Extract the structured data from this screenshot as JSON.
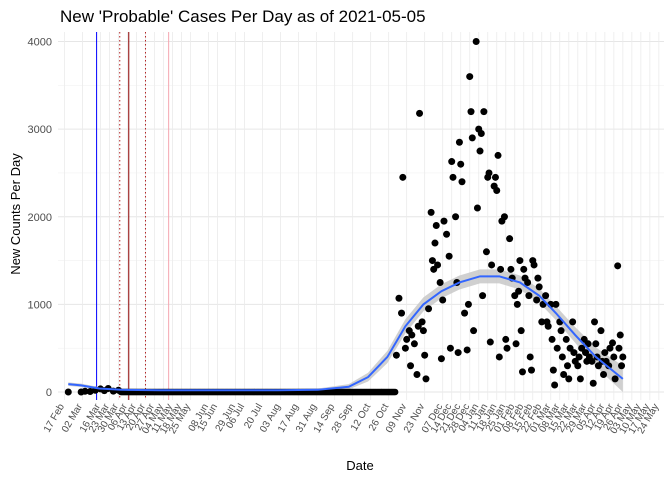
{
  "chart_data": {
    "type": "scatter",
    "title": "New 'Probable' Cases Per Day as of 2021-05-05",
    "xlabel": "Date",
    "ylabel": "New Counts Per Day",
    "ylim": [
      0,
      4200
    ],
    "xlim": [
      "2020-02-12",
      "2021-05-28"
    ],
    "grid": true,
    "y_ticks": [
      0,
      1000,
      2000,
      3000,
      4000
    ],
    "x_ticks": [
      {
        "date": "2020-02-17",
        "label": "17 Feb"
      },
      {
        "date": "2020-03-02",
        "label": "02 Mar"
      },
      {
        "date": "2020-03-16",
        "label": "16 Mar"
      },
      {
        "date": "2020-03-23",
        "label": "23 Mar"
      },
      {
        "date": "2020-03-30",
        "label": "30 Mar"
      },
      {
        "date": "2020-04-06",
        "label": "06 Apr"
      },
      {
        "date": "2020-04-13",
        "label": "13 Apr"
      },
      {
        "date": "2020-04-20",
        "label": "20 Apr"
      },
      {
        "date": "2020-04-27",
        "label": "27 Apr"
      },
      {
        "date": "2020-05-04",
        "label": "04 May"
      },
      {
        "date": "2020-05-11",
        "label": "11 May"
      },
      {
        "date": "2020-05-18",
        "label": "18 May"
      },
      {
        "date": "2020-05-25",
        "label": "25 May"
      },
      {
        "date": "2020-06-08",
        "label": "08 Jun"
      },
      {
        "date": "2020-06-15",
        "label": "15 Jun"
      },
      {
        "date": "2020-06-29",
        "label": "29 Jun"
      },
      {
        "date": "2020-07-06",
        "label": "06 Jul"
      },
      {
        "date": "2020-07-20",
        "label": "20 Jul"
      },
      {
        "date": "2020-08-03",
        "label": "03 Aug"
      },
      {
        "date": "2020-08-17",
        "label": "17 Aug"
      },
      {
        "date": "2020-08-31",
        "label": "31 Aug"
      },
      {
        "date": "2020-09-14",
        "label": "14 Sep"
      },
      {
        "date": "2020-09-28",
        "label": "28 Sep"
      },
      {
        "date": "2020-10-12",
        "label": "12 Oct"
      },
      {
        "date": "2020-10-26",
        "label": "26 Oct"
      },
      {
        "date": "2020-11-09",
        "label": "09 Nov"
      },
      {
        "date": "2020-11-23",
        "label": "23 Nov"
      },
      {
        "date": "2020-12-07",
        "label": "07 Dec"
      },
      {
        "date": "2020-12-14",
        "label": "14 Dec"
      },
      {
        "date": "2020-12-21",
        "label": "21 Dec"
      },
      {
        "date": "2020-12-28",
        "label": "28 Dec"
      },
      {
        "date": "2021-01-04",
        "label": "04 Jan"
      },
      {
        "date": "2021-01-11",
        "label": "11 Jan"
      },
      {
        "date": "2021-01-18",
        "label": "18 Jan"
      },
      {
        "date": "2021-01-25",
        "label": "25 Jan"
      },
      {
        "date": "2021-02-01",
        "label": "01 Feb"
      },
      {
        "date": "2021-02-08",
        "label": "08 Feb"
      },
      {
        "date": "2021-02-15",
        "label": "15 Feb"
      },
      {
        "date": "2021-02-22",
        "label": "22 Feb"
      },
      {
        "date": "2021-03-01",
        "label": "01 Mar"
      },
      {
        "date": "2021-03-08",
        "label": "08 Mar"
      },
      {
        "date": "2021-03-15",
        "label": "15 Mar"
      },
      {
        "date": "2021-03-22",
        "label": "22 Mar"
      },
      {
        "date": "2021-03-29",
        "label": "29 Mar"
      },
      {
        "date": "2021-04-05",
        "label": "05 Apr"
      },
      {
        "date": "2021-04-12",
        "label": "12 Apr"
      },
      {
        "date": "2021-04-19",
        "label": "19 Apr"
      },
      {
        "date": "2021-04-26",
        "label": "26 Apr"
      },
      {
        "date": "2021-05-03",
        "label": "03 May"
      },
      {
        "date": "2021-05-10",
        "label": "10 May"
      },
      {
        "date": "2021-05-17",
        "label": "17 May"
      },
      {
        "date": "2021-05-24",
        "label": "24 May"
      }
    ],
    "reference_lines": [
      {
        "date": "2020-03-13",
        "color": "#0000ff",
        "style": "solid"
      },
      {
        "date": "2020-03-31",
        "color": "#b22222",
        "style": "dotted"
      },
      {
        "date": "2020-04-07",
        "color": "#8b0000",
        "style": "solid"
      },
      {
        "date": "2020-04-20",
        "color": "#b22222",
        "style": "dotted"
      },
      {
        "date": "2020-05-08",
        "color": "#f4a6b0",
        "style": "solid"
      }
    ],
    "series": [
      {
        "type": "scatter",
        "color": "#000000",
        "points": [
          [
            "2020-02-20",
            0
          ],
          [
            "2020-03-01",
            0
          ],
          [
            "2020-03-04",
            8
          ],
          [
            "2020-03-08",
            5
          ],
          [
            "2020-03-12",
            20
          ],
          [
            "2020-03-16",
            35
          ],
          [
            "2020-03-19",
            15
          ],
          [
            "2020-03-22",
            40
          ],
          [
            "2020-03-26",
            10
          ],
          [
            "2020-03-30",
            20
          ],
          [
            "2020-11-01",
            420
          ],
          [
            "2020-11-03",
            1070
          ],
          [
            "2020-11-05",
            900
          ],
          [
            "2020-11-06",
            2450
          ],
          [
            "2020-11-08",
            500
          ],
          [
            "2020-11-09",
            600
          ],
          [
            "2020-11-11",
            700
          ],
          [
            "2020-11-12",
            300
          ],
          [
            "2020-11-13",
            650
          ],
          [
            "2020-11-15",
            550
          ],
          [
            "2020-11-17",
            200
          ],
          [
            "2020-11-18",
            750
          ],
          [
            "2020-11-19",
            3180
          ],
          [
            "2020-11-21",
            800
          ],
          [
            "2020-11-22",
            700
          ],
          [
            "2020-11-23",
            420
          ],
          [
            "2020-11-24",
            150
          ],
          [
            "2020-11-26",
            950
          ],
          [
            "2020-11-28",
            2050
          ],
          [
            "2020-11-29",
            1500
          ],
          [
            "2020-11-30",
            1400
          ],
          [
            "2020-12-01",
            1700
          ],
          [
            "2020-12-02",
            1900
          ],
          [
            "2020-12-03",
            1450
          ],
          [
            "2020-12-05",
            1250
          ],
          [
            "2020-12-06",
            380
          ],
          [
            "2020-12-07",
            1050
          ],
          [
            "2020-12-08",
            1950
          ],
          [
            "2020-12-10",
            1800
          ],
          [
            "2020-12-12",
            1550
          ],
          [
            "2020-12-13",
            500
          ],
          [
            "2020-12-14",
            2630
          ],
          [
            "2020-12-15",
            2450
          ],
          [
            "2020-12-17",
            2000
          ],
          [
            "2020-12-18",
            1250
          ],
          [
            "2020-12-19",
            450
          ],
          [
            "2020-12-20",
            2850
          ],
          [
            "2020-12-21",
            2600
          ],
          [
            "2020-12-22",
            2400
          ],
          [
            "2020-12-24",
            900
          ],
          [
            "2020-12-26",
            480
          ],
          [
            "2020-12-27",
            1000
          ],
          [
            "2020-12-28",
            3600
          ],
          [
            "2020-12-29",
            3200
          ],
          [
            "2020-12-30",
            2900
          ],
          [
            "2020-12-31",
            700
          ],
          [
            "2021-01-02",
            4000
          ],
          [
            "2021-01-03",
            2100
          ],
          [
            "2021-01-04",
            3000
          ],
          [
            "2021-01-05",
            2750
          ],
          [
            "2021-01-06",
            2950
          ],
          [
            "2021-01-07",
            1100
          ],
          [
            "2021-01-08",
            3200
          ],
          [
            "2021-01-10",
            1600
          ],
          [
            "2021-01-11",
            2450
          ],
          [
            "2021-01-12",
            2500
          ],
          [
            "2021-01-13",
            570
          ],
          [
            "2021-01-14",
            1450
          ],
          [
            "2021-01-16",
            2350
          ],
          [
            "2021-01-17",
            2450
          ],
          [
            "2021-01-18",
            2300
          ],
          [
            "2021-01-19",
            2700
          ],
          [
            "2021-01-20",
            400
          ],
          [
            "2021-01-21",
            1400
          ],
          [
            "2021-01-22",
            1950
          ],
          [
            "2021-01-24",
            2000
          ],
          [
            "2021-01-25",
            600
          ],
          [
            "2021-01-26",
            500
          ],
          [
            "2021-01-28",
            1750
          ],
          [
            "2021-01-29",
            1400
          ],
          [
            "2021-01-30",
            1300
          ],
          [
            "2021-02-01",
            1100
          ],
          [
            "2021-02-02",
            550
          ],
          [
            "2021-02-03",
            1000
          ],
          [
            "2021-02-04",
            1150
          ],
          [
            "2021-02-05",
            1500
          ],
          [
            "2021-02-06",
            700
          ],
          [
            "2021-02-07",
            230
          ],
          [
            "2021-02-08",
            1400
          ],
          [
            "2021-02-09",
            1300
          ],
          [
            "2021-02-11",
            1250
          ],
          [
            "2021-02-12",
            1100
          ],
          [
            "2021-02-13",
            400
          ],
          [
            "2021-02-14",
            250
          ],
          [
            "2021-02-15",
            1500
          ],
          [
            "2021-02-16",
            1450
          ],
          [
            "2021-02-18",
            1050
          ],
          [
            "2021-02-19",
            1300
          ],
          [
            "2021-02-20",
            1200
          ],
          [
            "2021-02-22",
            800
          ],
          [
            "2021-02-23",
            1000
          ],
          [
            "2021-02-25",
            1100
          ],
          [
            "2021-02-26",
            800
          ],
          [
            "2021-02-27",
            750
          ],
          [
            "2021-03-01",
            1000
          ],
          [
            "2021-03-02",
            600
          ],
          [
            "2021-03-03",
            250
          ],
          [
            "2021-03-04",
            80
          ],
          [
            "2021-03-05",
            1000
          ],
          [
            "2021-03-06",
            500
          ],
          [
            "2021-03-08",
            800
          ],
          [
            "2021-03-09",
            700
          ],
          [
            "2021-03-10",
            400
          ],
          [
            "2021-03-11",
            200
          ],
          [
            "2021-03-13",
            600
          ],
          [
            "2021-03-14",
            300
          ],
          [
            "2021-03-15",
            150
          ],
          [
            "2021-03-16",
            500
          ],
          [
            "2021-03-18",
            800
          ],
          [
            "2021-03-19",
            450
          ],
          [
            "2021-03-20",
            350
          ],
          [
            "2021-03-22",
            300
          ],
          [
            "2021-03-23",
            400
          ],
          [
            "2021-03-24",
            150
          ],
          [
            "2021-03-25",
            500
          ],
          [
            "2021-03-27",
            600
          ],
          [
            "2021-03-28",
            450
          ],
          [
            "2021-03-29",
            350
          ],
          [
            "2021-03-30",
            550
          ],
          [
            "2021-03-31",
            400
          ],
          [
            "2021-04-02",
            350
          ],
          [
            "2021-04-03",
            100
          ],
          [
            "2021-04-04",
            800
          ],
          [
            "2021-04-05",
            550
          ],
          [
            "2021-04-06",
            400
          ],
          [
            "2021-04-07",
            300
          ],
          [
            "2021-04-09",
            700
          ],
          [
            "2021-04-10",
            350
          ],
          [
            "2021-04-11",
            200
          ],
          [
            "2021-04-12",
            450
          ],
          [
            "2021-04-13",
            350
          ],
          [
            "2021-04-15",
            300
          ],
          [
            "2021-04-16",
            500
          ],
          [
            "2021-04-18",
            560
          ],
          [
            "2021-04-19",
            400
          ],
          [
            "2021-04-20",
            150
          ],
          [
            "2021-04-22",
            1440
          ],
          [
            "2021-04-23",
            500
          ],
          [
            "2021-04-24",
            650
          ],
          [
            "2021-04-25",
            300
          ],
          [
            "2021-04-26",
            400
          ]
        ]
      },
      {
        "type": "baseline_points",
        "color": "#000000",
        "range": [
          "2020-04-01",
          "2020-10-31"
        ],
        "value": 0
      },
      {
        "type": "smooth",
        "color": "#3366ff",
        "band_color": "#c8c8c8",
        "points": [
          [
            "2020-02-20",
            90,
            20
          ],
          [
            "2020-03-01",
            75,
            20
          ],
          [
            "2020-03-15",
            40,
            15
          ],
          [
            "2020-04-01",
            25,
            15
          ],
          [
            "2020-05-01",
            20,
            12
          ],
          [
            "2020-06-01",
            20,
            12
          ],
          [
            "2020-07-01",
            20,
            12
          ],
          [
            "2020-08-01",
            20,
            12
          ],
          [
            "2020-09-01",
            25,
            15
          ],
          [
            "2020-09-25",
            60,
            30
          ],
          [
            "2020-10-10",
            170,
            50
          ],
          [
            "2020-10-25",
            400,
            70
          ],
          [
            "2020-11-08",
            750,
            80
          ],
          [
            "2020-11-22",
            1000,
            80
          ],
          [
            "2020-12-06",
            1150,
            80
          ],
          [
            "2020-12-20",
            1250,
            80
          ],
          [
            "2021-01-05",
            1320,
            80
          ],
          [
            "2021-01-20",
            1320,
            80
          ],
          [
            "2021-02-05",
            1250,
            80
          ],
          [
            "2021-02-20",
            1100,
            80
          ],
          [
            "2021-03-05",
            900,
            80
          ],
          [
            "2021-03-20",
            650,
            90
          ],
          [
            "2021-04-05",
            400,
            110
          ],
          [
            "2021-04-26",
            150,
            150
          ]
        ]
      }
    ]
  }
}
